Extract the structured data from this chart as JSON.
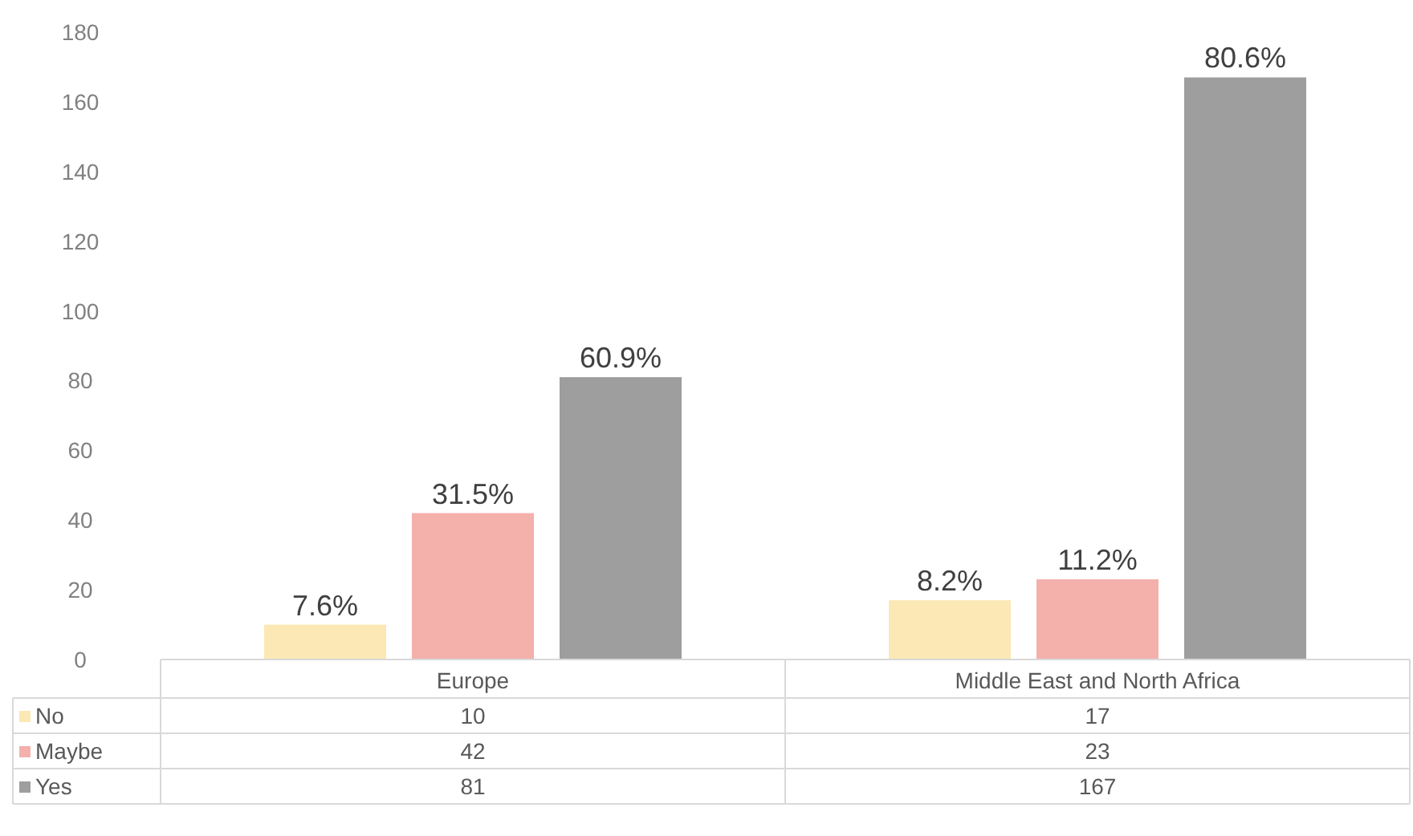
{
  "chart_data": {
    "type": "bar",
    "categories": [
      "Europe",
      "Middle East and North Africa"
    ],
    "series": [
      {
        "name": "No",
        "color": "#fbe8b5",
        "values": [
          10,
          17
        ]
      },
      {
        "name": "Maybe",
        "color": "#f4b0ab",
        "values": [
          42,
          23
        ]
      },
      {
        "name": "Yes",
        "color": "#9e9e9e",
        "values": [
          81,
          167
        ]
      }
    ],
    "annotations": [
      "7.6%",
      "31.5%",
      "60.9%",
      "8.2%",
      "11.2%",
      "80.6%"
    ],
    "ylim": [
      0,
      180
    ],
    "yticks": [
      0,
      20,
      40,
      60,
      80,
      100,
      120,
      140,
      160,
      180
    ],
    "data_labels": true,
    "grid": false,
    "legend": "bottom"
  }
}
